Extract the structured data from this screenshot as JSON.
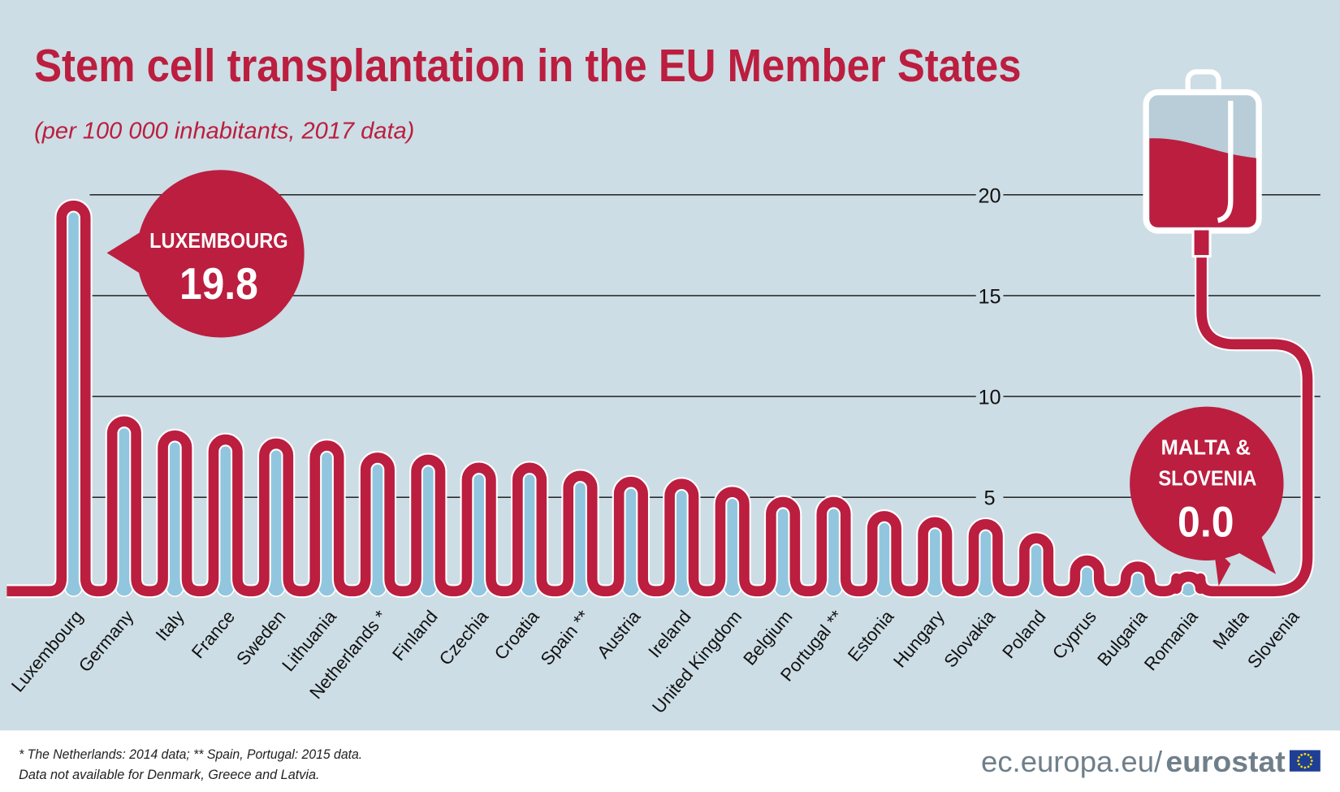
{
  "title": "Stem cell transplantation in the EU Member States",
  "subtitle": "(per 100 000 inhabitants, 2017 data)",
  "colors": {
    "background": "#cddde5",
    "accent": "#bb1e3f",
    "bar_fill": "#92c6de",
    "footer_text": "#6f7f8a"
  },
  "chart_data": {
    "type": "bar",
    "title": "Stem cell transplantation in the EU Member States",
    "subtitle": "(per 100 000 inhabitants, 2017 data)",
    "categories": [
      "Luxembourg",
      "Germany",
      "Italy",
      "France",
      "Sweden",
      "Lithuania",
      "Netherlands *",
      "Finland",
      "Czechia",
      "Croatia",
      "Spain **",
      "Austria",
      "Ireland",
      "United Kingdom",
      "Belgium",
      "Portugal **",
      "Estonia",
      "Hungary",
      "Slovakia",
      "Poland",
      "Cyprus",
      "Bulgaria",
      "Romania",
      "Malta",
      "Slovenia"
    ],
    "values": [
      19.8,
      9.1,
      8.4,
      8.2,
      8.0,
      7.9,
      7.3,
      7.2,
      6.8,
      6.8,
      6.4,
      6.1,
      6.0,
      5.6,
      5.1,
      5.1,
      4.4,
      4.1,
      4.0,
      3.3,
      2.2,
      1.9,
      1.4,
      0.0,
      0.0
    ],
    "yticks": [
      "5",
      "10",
      "15",
      "20"
    ],
    "ylim": [
      0,
      20
    ],
    "grid": true,
    "xlabel": "",
    "ylabel": ""
  },
  "callouts": {
    "max": {
      "label": "LUXEMBOURG",
      "value": "19.8"
    },
    "min": {
      "label_line1": "MALTA &",
      "label_line2": "SLOVENIA",
      "value": "0.0"
    }
  },
  "footer": {
    "note1": "* The Netherlands: 2014 data; ** Spain, Portugal: 2015 data.",
    "note2": "Data not available for Denmark, Greece and Latvia.",
    "site": "ec.europa.eu/",
    "brand": "eurostat"
  },
  "icons": {
    "bag": "blood-bag-icon",
    "flag": "eu-flag-icon"
  }
}
